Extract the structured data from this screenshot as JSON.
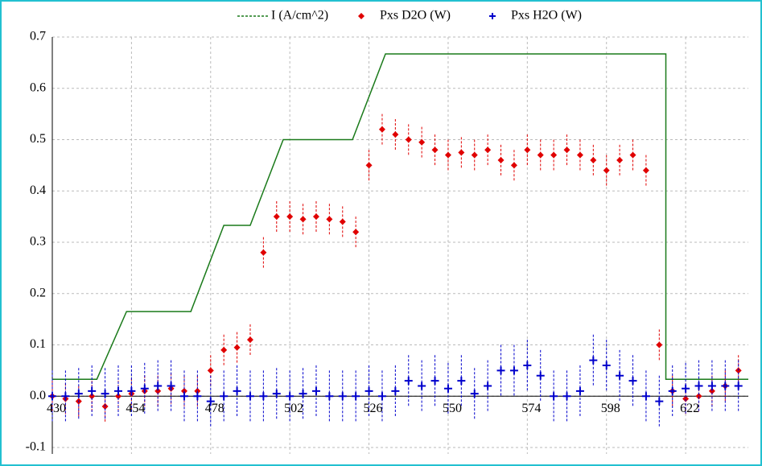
{
  "chart_data": {
    "type": "scatter",
    "xlim": [
      430,
      641
    ],
    "xticks": [
      430,
      454,
      478,
      502,
      526,
      550,
      574,
      598,
      622
    ],
    "ylim": [
      -0.1,
      0.7
    ],
    "yticks": [
      -0.1,
      {
        "value": 0,
        "label": "0.0"
      },
      0.1,
      0.2,
      0.3,
      0.4,
      0.5,
      0.6,
      0.7
    ],
    "grid": true,
    "legend": "top",
    "series": [
      {
        "name": "I (A/cm^2)",
        "type": "line",
        "color": "#1a7a1a",
        "x": [
          430,
          443.5,
          452.5,
          472,
          482,
          490,
          500,
          521,
          531,
          616,
          616,
          641
        ],
        "values": [
          0.033,
          0.033,
          0.165,
          0.165,
          0.333,
          0.333,
          0.5,
          0.5,
          0.667,
          0.667,
          0.033,
          0.033
        ]
      },
      {
        "name": "Pxs D2O (W)",
        "type": "scatter",
        "color": "#e00000",
        "error": 0.03,
        "x": [
          430,
          434,
          438,
          442,
          446,
          450,
          454,
          458,
          462,
          466,
          470,
          474,
          478,
          482,
          486,
          490,
          494,
          498,
          502,
          506,
          510,
          514,
          518,
          522,
          526,
          530,
          534,
          538,
          542,
          546,
          550,
          554,
          558,
          562,
          566,
          570,
          574,
          578,
          582,
          586,
          590,
          594,
          598,
          602,
          606,
          610,
          614,
          618,
          622,
          626,
          630,
          634,
          638
        ],
        "values": [
          0.0,
          -0.005,
          -0.01,
          0.0,
          -0.02,
          0.0,
          0.005,
          0.01,
          0.01,
          0.015,
          0.01,
          0.01,
          0.05,
          0.09,
          0.095,
          0.11,
          0.28,
          0.35,
          0.35,
          0.345,
          0.35,
          0.345,
          0.34,
          0.32,
          0.45,
          0.52,
          0.51,
          0.5,
          0.495,
          0.48,
          0.47,
          0.475,
          0.47,
          0.48,
          0.46,
          0.45,
          0.48,
          0.47,
          0.47,
          0.48,
          0.47,
          0.46,
          0.44,
          0.46,
          0.47,
          0.44,
          0.1,
          0.01,
          -0.005,
          0.0,
          0.01,
          0.02,
          0.05
        ]
      },
      {
        "name": "Pxs H2O (W)",
        "type": "scatter",
        "color": "#0000cc",
        "error": 0.05,
        "x": [
          430,
          434,
          438,
          442,
          446,
          450,
          454,
          458,
          462,
          466,
          470,
          474,
          478,
          482,
          486,
          490,
          494,
          498,
          502,
          506,
          510,
          514,
          518,
          522,
          526,
          530,
          534,
          538,
          542,
          546,
          550,
          554,
          558,
          562,
          566,
          570,
          574,
          578,
          582,
          586,
          590,
          594,
          598,
          602,
          606,
          610,
          614,
          618,
          622,
          626,
          630,
          634,
          638
        ],
        "values": [
          0.0,
          0.0,
          0.005,
          0.01,
          0.005,
          0.01,
          0.01,
          0.015,
          0.02,
          0.02,
          0.0,
          0.0,
          -0.01,
          0.0,
          0.01,
          0.0,
          0.0,
          0.005,
          0.0,
          0.005,
          0.01,
          0.0,
          0.0,
          0.0,
          0.01,
          0.0,
          0.01,
          0.03,
          0.02,
          0.03,
          0.015,
          0.03,
          0.005,
          0.02,
          0.05,
          0.05,
          0.06,
          0.04,
          0.0,
          0.0,
          0.01,
          0.07,
          0.06,
          0.04,
          0.03,
          0.0,
          -0.01,
          0.01,
          0.015,
          0.02,
          0.02,
          0.02,
          0.02
        ]
      }
    ]
  }
}
